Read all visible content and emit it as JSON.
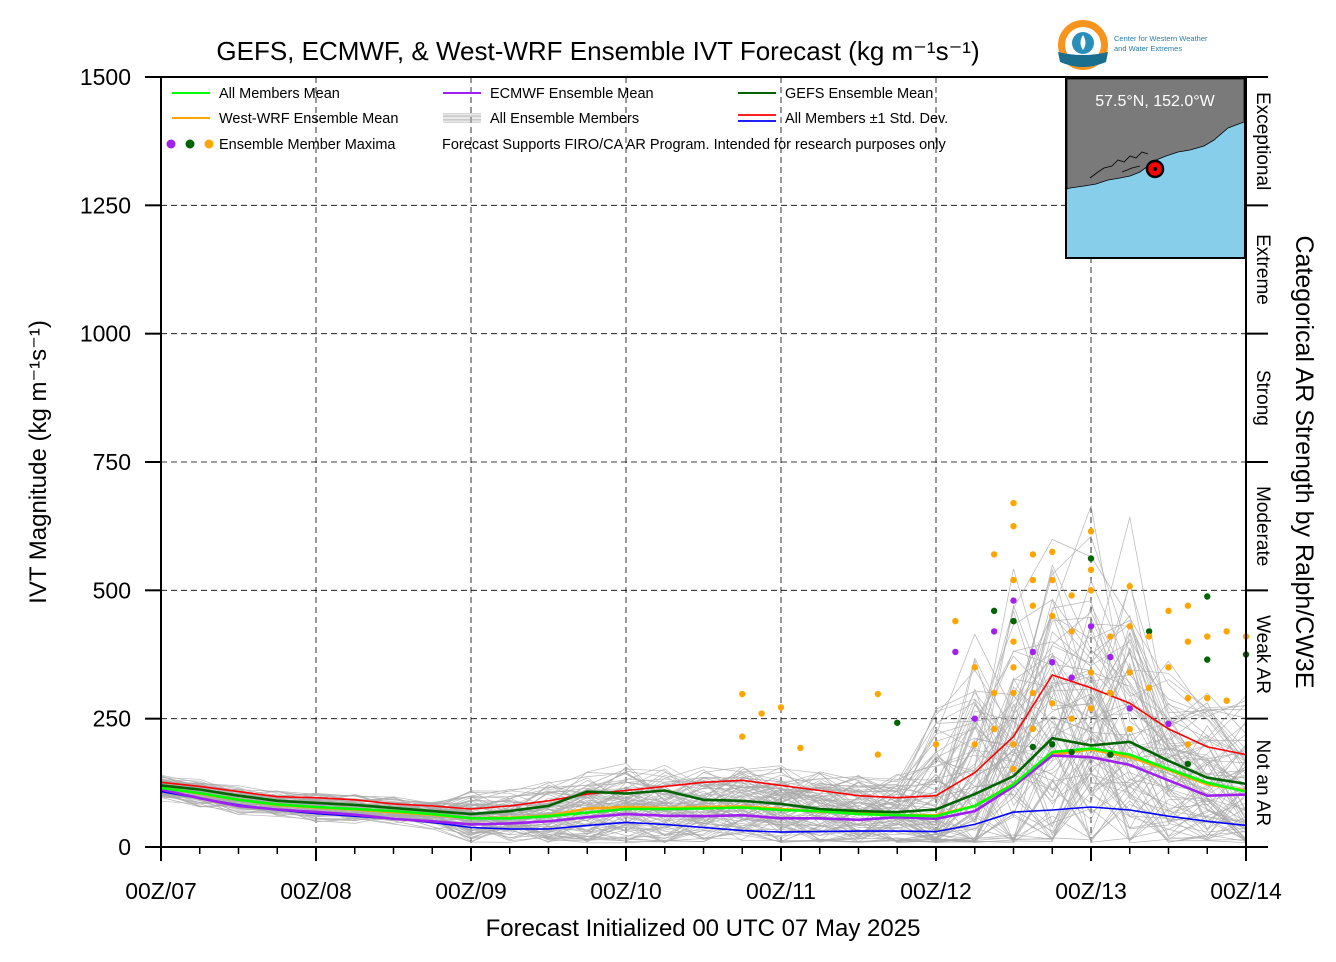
{
  "chart_data": {
    "type": "line",
    "title": "GEFS, ECMWF, & West-WRF Ensemble IVT Forecast (kg m⁻¹s⁻¹)",
    "xlabel": "Forecast Initialized 00 UTC 07 May 2025",
    "ylabel": "IVT Magnitude (kg m⁻¹s⁻¹)",
    "right_label": "Categorical AR Strength by Ralph/CW3E",
    "ylim": [
      0,
      1500
    ],
    "xlim": [
      0,
      168
    ],
    "y_ticks": [
      "0",
      "250",
      "500",
      "750",
      "1000",
      "1250",
      "1500"
    ],
    "x_tick_labels": [
      "00Z/07",
      "00Z/08",
      "00Z/09",
      "00Z/10",
      "00Z/11",
      "00Z/12",
      "00Z/13",
      "00Z/14"
    ],
    "grid": true,
    "legend_placement": "top-left",
    "categories_ar": [
      {
        "label": "Not an AR",
        "range": [
          0,
          250
        ]
      },
      {
        "label": "Weak AR",
        "range": [
          250,
          500
        ]
      },
      {
        "label": "Moderate",
        "range": [
          500,
          750
        ]
      },
      {
        "label": "Strong",
        "range": [
          750,
          1000
        ]
      },
      {
        "label": "Extreme",
        "range": [
          1000,
          1250
        ]
      },
      {
        "label": "Exceptional",
        "range": [
          1250,
          1500
        ]
      }
    ],
    "legend": [
      {
        "label": "All Members Mean",
        "color": "#00ff00",
        "kind": "line"
      },
      {
        "label": "ECMWF Ensemble Mean",
        "color": "#a020f0",
        "kind": "line"
      },
      {
        "label": "GEFS Ensemble Mean",
        "color": "#006400",
        "kind": "line"
      },
      {
        "label": "West-WRF Ensemble Mean",
        "color": "#ffa500",
        "kind": "line"
      },
      {
        "label": "All Ensemble Members",
        "color": "#aaaaaa",
        "kind": "multiline"
      },
      {
        "label": "All Members ±1 Std. Dev.",
        "color": "#ff0000",
        "color2": "#0000ff",
        "kind": "dual"
      },
      {
        "label": "Ensemble Member Maxima",
        "kind": "dots",
        "colors": [
          "#a020f0",
          "#006400",
          "#ffa500"
        ]
      },
      {
        "label": "Forecast Supports FIRO/CA AR Program. Intended for research purposes only",
        "kind": "note"
      }
    ],
    "x_hours": [
      0,
      6,
      12,
      18,
      24,
      30,
      36,
      42,
      48,
      54,
      60,
      66,
      72,
      78,
      84,
      90,
      96,
      102,
      108,
      114,
      120,
      126,
      132,
      138,
      144,
      150,
      156,
      162,
      168
    ],
    "series": [
      {
        "name": "All Members Mean",
        "color": "#00ff00",
        "values": [
          115,
          105,
          92,
          83,
          78,
          74,
          70,
          64,
          56,
          56,
          60,
          67,
          74,
          74,
          75,
          77,
          72,
          70,
          64,
          62,
          60,
          80,
          122,
          185,
          192,
          180,
          152,
          125,
          108
        ]
      },
      {
        "name": "ECMWF Ensemble Mean",
        "color": "#a020f0",
        "values": [
          112,
          95,
          80,
          73,
          68,
          63,
          55,
          50,
          44,
          46,
          50,
          58,
          64,
          61,
          60,
          62,
          56,
          56,
          53,
          58,
          55,
          70,
          118,
          178,
          175,
          160,
          130,
          100,
          102
        ]
      },
      {
        "name": "GEFS Ensemble Mean",
        "color": "#006400",
        "values": [
          120,
          112,
          100,
          90,
          86,
          82,
          76,
          70,
          64,
          70,
          80,
          108,
          104,
          110,
          92,
          90,
          84,
          74,
          70,
          68,
          73,
          103,
          138,
          212,
          198,
          205,
          168,
          135,
          123
        ]
      },
      {
        "name": "West-WRF Ensemble Mean",
        "color": "#ffa500",
        "values": [
          116,
          104,
          92,
          82,
          77,
          73,
          68,
          63,
          56,
          57,
          61,
          75,
          78,
          76,
          78,
          79,
          74,
          69,
          66,
          62,
          62,
          80,
          123,
          180,
          190,
          175,
          150,
          122,
          110
        ]
      },
      {
        "name": "All Members +1 Std. Dev.",
        "color": "#ff0000",
        "values": [
          126,
          118,
          108,
          98,
          96,
          92,
          84,
          80,
          74,
          80,
          90,
          103,
          110,
          118,
          126,
          130,
          120,
          110,
          100,
          96,
          100,
          145,
          215,
          335,
          310,
          280,
          230,
          195,
          180
        ]
      },
      {
        "name": "All Members -1 Std. Dev.",
        "color": "#0000ff",
        "values": [
          108,
          95,
          82,
          72,
          65,
          60,
          55,
          48,
          38,
          35,
          35,
          42,
          48,
          44,
          38,
          32,
          29,
          30,
          31,
          31,
          30,
          44,
          68,
          72,
          78,
          72,
          60,
          50,
          42
        ]
      }
    ],
    "member_maxima": [
      {
        "x": 90,
        "y": 298,
        "color": "#ffa500"
      },
      {
        "x": 93,
        "y": 260,
        "color": "#ffa500"
      },
      {
        "x": 96,
        "y": 272,
        "color": "#ffa500"
      },
      {
        "x": 90,
        "y": 215,
        "color": "#ffa500"
      },
      {
        "x": 99,
        "y": 193,
        "color": "#ffa500"
      },
      {
        "x": 111,
        "y": 298,
        "color": "#ffa500"
      },
      {
        "x": 111,
        "y": 180,
        "color": "#ffa500"
      },
      {
        "x": 114,
        "y": 242,
        "color": "#006400"
      },
      {
        "x": 120,
        "y": 200,
        "color": "#ffa500"
      },
      {
        "x": 123,
        "y": 440,
        "color": "#ffa500"
      },
      {
        "x": 123,
        "y": 380,
        "color": "#a020f0"
      },
      {
        "x": 126,
        "y": 350,
        "color": "#ffa500"
      },
      {
        "x": 126,
        "y": 250,
        "color": "#a020f0"
      },
      {
        "x": 126,
        "y": 200,
        "color": "#ffa500"
      },
      {
        "x": 129,
        "y": 570,
        "color": "#ffa500"
      },
      {
        "x": 129,
        "y": 460,
        "color": "#006400"
      },
      {
        "x": 129,
        "y": 420,
        "color": "#a020f0"
      },
      {
        "x": 129,
        "y": 300,
        "color": "#ffa500"
      },
      {
        "x": 129,
        "y": 230,
        "color": "#ffa500"
      },
      {
        "x": 132,
        "y": 670,
        "color": "#ffa500"
      },
      {
        "x": 132,
        "y": 625,
        "color": "#ffa500"
      },
      {
        "x": 132,
        "y": 520,
        "color": "#ffa500"
      },
      {
        "x": 132,
        "y": 480,
        "color": "#a020f0"
      },
      {
        "x": 132,
        "y": 440,
        "color": "#006400"
      },
      {
        "x": 132,
        "y": 400,
        "color": "#ffa500"
      },
      {
        "x": 132,
        "y": 350,
        "color": "#ffa500"
      },
      {
        "x": 132,
        "y": 300,
        "color": "#ffa500"
      },
      {
        "x": 132,
        "y": 200,
        "color": "#ffa500"
      },
      {
        "x": 132,
        "y": 152,
        "color": "#ffa500"
      },
      {
        "x": 135,
        "y": 570,
        "color": "#ffa500"
      },
      {
        "x": 135,
        "y": 520,
        "color": "#ffa500"
      },
      {
        "x": 135,
        "y": 470,
        "color": "#ffa500"
      },
      {
        "x": 135,
        "y": 380,
        "color": "#a020f0"
      },
      {
        "x": 135,
        "y": 300,
        "color": "#ffa500"
      },
      {
        "x": 135,
        "y": 230,
        "color": "#ffa500"
      },
      {
        "x": 135,
        "y": 195,
        "color": "#006400"
      },
      {
        "x": 138,
        "y": 575,
        "color": "#ffa500"
      },
      {
        "x": 138,
        "y": 520,
        "color": "#ffa500"
      },
      {
        "x": 138,
        "y": 450,
        "color": "#ffa500"
      },
      {
        "x": 138,
        "y": 360,
        "color": "#a020f0"
      },
      {
        "x": 138,
        "y": 280,
        "color": "#ffa500"
      },
      {
        "x": 138,
        "y": 200,
        "color": "#006400"
      },
      {
        "x": 141,
        "y": 490,
        "color": "#ffa500"
      },
      {
        "x": 141,
        "y": 420,
        "color": "#ffa500"
      },
      {
        "x": 141,
        "y": 330,
        "color": "#a020f0"
      },
      {
        "x": 141,
        "y": 250,
        "color": "#ffa500"
      },
      {
        "x": 141,
        "y": 185,
        "color": "#006400"
      },
      {
        "x": 144,
        "y": 615,
        "color": "#ffa500"
      },
      {
        "x": 144,
        "y": 562,
        "color": "#006400"
      },
      {
        "x": 144,
        "y": 540,
        "color": "#ffa500"
      },
      {
        "x": 144,
        "y": 500,
        "color": "#ffa500"
      },
      {
        "x": 144,
        "y": 430,
        "color": "#a020f0"
      },
      {
        "x": 144,
        "y": 340,
        "color": "#ffa500"
      },
      {
        "x": 144,
        "y": 270,
        "color": "#ffa500"
      },
      {
        "x": 147,
        "y": 410,
        "color": "#ffa500"
      },
      {
        "x": 147,
        "y": 370,
        "color": "#a020f0"
      },
      {
        "x": 147,
        "y": 300,
        "color": "#ffa500"
      },
      {
        "x": 147,
        "y": 180,
        "color": "#006400"
      },
      {
        "x": 150,
        "y": 508,
        "color": "#ffa500"
      },
      {
        "x": 150,
        "y": 430,
        "color": "#ffa500"
      },
      {
        "x": 150,
        "y": 340,
        "color": "#ffa500"
      },
      {
        "x": 150,
        "y": 270,
        "color": "#a020f0"
      },
      {
        "x": 150,
        "y": 230,
        "color": "#ffa500"
      },
      {
        "x": 153,
        "y": 420,
        "color": "#006400"
      },
      {
        "x": 153,
        "y": 410,
        "color": "#ffa500"
      },
      {
        "x": 153,
        "y": 310,
        "color": "#ffa500"
      },
      {
        "x": 156,
        "y": 460,
        "color": "#ffa500"
      },
      {
        "x": 156,
        "y": 350,
        "color": "#ffa500"
      },
      {
        "x": 156,
        "y": 240,
        "color": "#a020f0"
      },
      {
        "x": 159,
        "y": 470,
        "color": "#ffa500"
      },
      {
        "x": 159,
        "y": 400,
        "color": "#ffa500"
      },
      {
        "x": 159,
        "y": 290,
        "color": "#ffa500"
      },
      {
        "x": 159,
        "y": 200,
        "color": "#ffa500"
      },
      {
        "x": 159,
        "y": 162,
        "color": "#006400"
      },
      {
        "x": 162,
        "y": 488,
        "color": "#006400"
      },
      {
        "x": 162,
        "y": 410,
        "color": "#ffa500"
      },
      {
        "x": 162,
        "y": 365,
        "color": "#006400"
      },
      {
        "x": 162,
        "y": 290,
        "color": "#ffa500"
      },
      {
        "x": 165,
        "y": 420,
        "color": "#ffa500"
      },
      {
        "x": 165,
        "y": 285,
        "color": "#ffa500"
      },
      {
        "x": 168,
        "y": 410,
        "color": "#ffa500"
      },
      {
        "x": 168,
        "y": 375,
        "color": "#006400"
      }
    ],
    "ensemble_members": {
      "count": 90,
      "color": "#aaaaaa",
      "peak_envelope": [
        320,
        680
      ]
    },
    "inset_map": {
      "label": "57.5°N, 152.0°W",
      "land_color": "#7a7a7a",
      "ocean_color": "#87ceeb",
      "marker_color": "#ff0000"
    },
    "logo": {
      "text_line1": "Center for Western Weather",
      "text_line2": "and Water Extremes"
    }
  }
}
